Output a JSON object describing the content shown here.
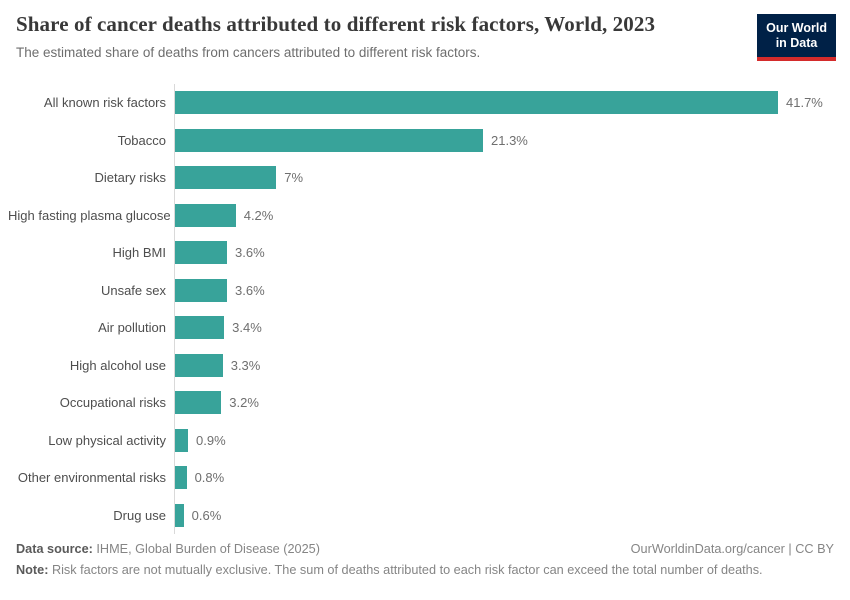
{
  "header": {
    "title": "Share of cancer deaths attributed to different risk factors, World, 2023",
    "subtitle": "The estimated share of deaths from cancers attributed to different risk factors.",
    "logo": {
      "line1": "Our World",
      "line2": "in Data"
    }
  },
  "chart_data": {
    "type": "bar",
    "orientation": "horizontal",
    "title": "Share of cancer deaths attributed to different risk factors, World, 2023",
    "xlabel": "",
    "ylabel": "",
    "xlim": [
      0,
      45
    ],
    "grid": false,
    "legend": false,
    "categories": [
      "All known risk factors",
      "Tobacco",
      "Dietary risks",
      "High fasting plasma glucose",
      "High BMI",
      "Unsafe sex",
      "Air pollution",
      "High alcohol use",
      "Occupational risks",
      "Low physical activity",
      "Other environmental risks",
      "Drug use"
    ],
    "values": [
      41.7,
      21.3,
      7,
      4.2,
      3.6,
      3.6,
      3.4,
      3.3,
      3.2,
      0.9,
      0.8,
      0.6
    ],
    "value_labels": [
      "41.7%",
      "21.3%",
      "7%",
      "4.2%",
      "3.6%",
      "3.6%",
      "3.4%",
      "3.3%",
      "3.2%",
      "0.9%",
      "0.8%",
      "0.6%"
    ]
  },
  "colors": {
    "bar": "#38a39a",
    "axis_line": "#d9d9d9",
    "logo_bg": "#002147",
    "logo_accent": "#d42b2b"
  },
  "footer": {
    "datasource_label": "Data source:",
    "datasource_text": " IHME, Global Burden of Disease (2025)",
    "license": "OurWorldinData.org/cancer | CC BY",
    "note_label": "Note:",
    "note_text": " Risk factors are not mutually exclusive. The sum of deaths attributed to each risk factor can exceed the total number of deaths."
  }
}
